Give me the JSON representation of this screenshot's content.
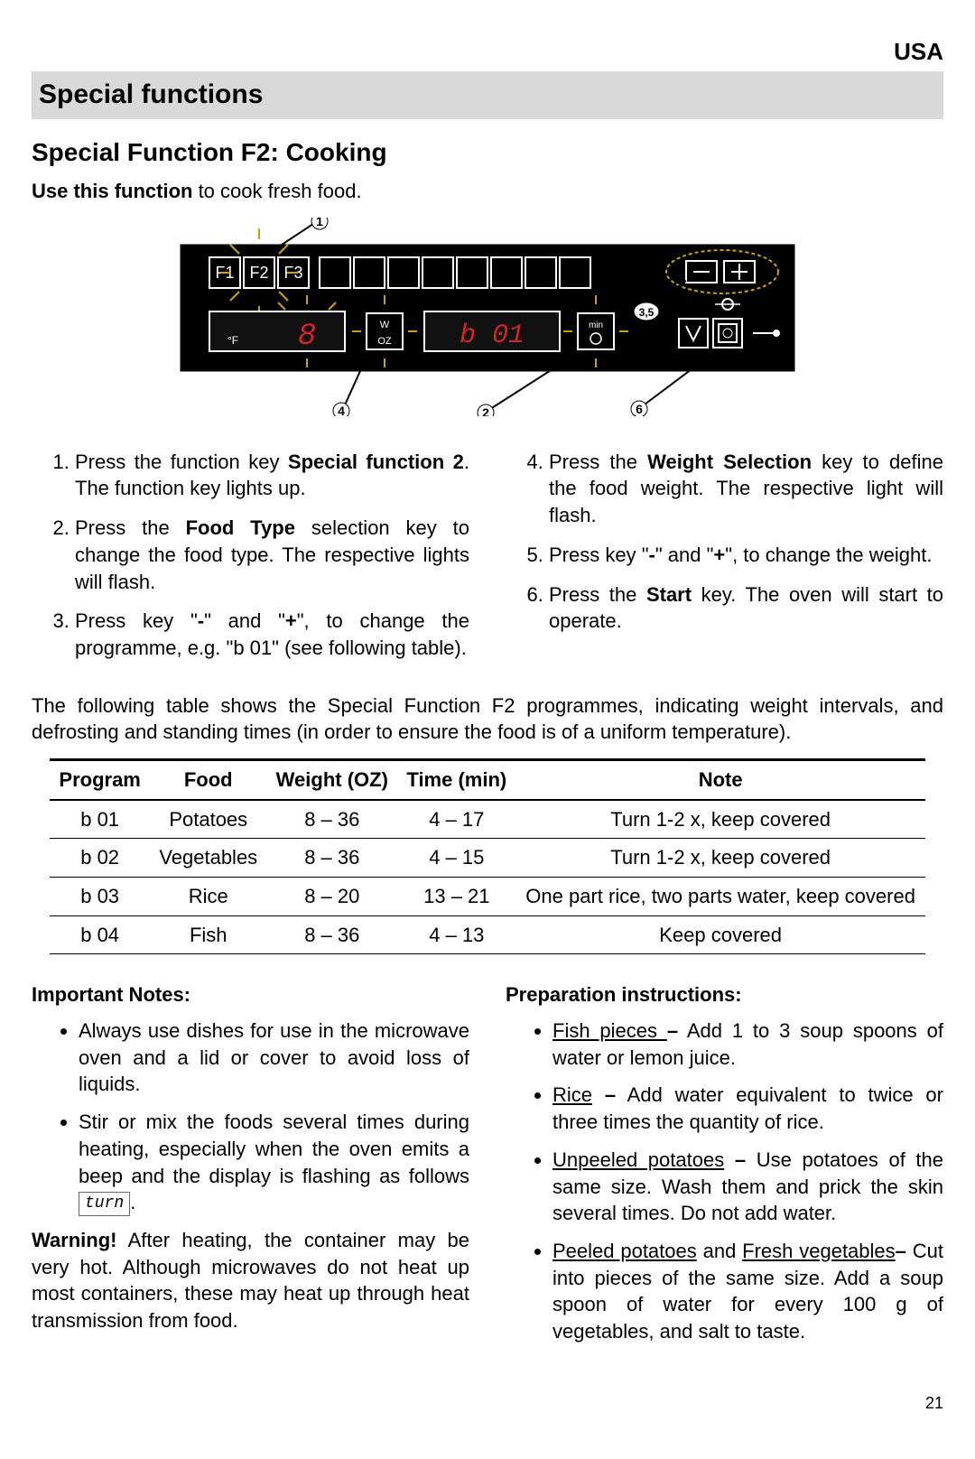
{
  "header": {
    "country": "USA"
  },
  "banner": "Special functions",
  "subhead": "Special Function F2: Cooking",
  "intro_lead": "Use this function",
  "intro_rest": " to cook fresh food.",
  "panel": {
    "bg": "#000000",
    "display_red": "#d4232a",
    "highlight": "#c9a400",
    "keys": [
      "F1",
      "F2",
      "F3"
    ],
    "display_left": "8",
    "display_right": "b 01",
    "callouts": [
      "1",
      "2",
      "3,5",
      "4",
      "6"
    ]
  },
  "steps_left": [
    "Press the function key <b>Special function 2</b>. The function key lights up.",
    "Press the <b>Food Type</b> selection key to change the food type. The respective lights will flash.",
    "Press key \"<b>-</b>\" and \"<b>+</b>\", to change the programme, e.g. \"b 01\" (see following table)."
  ],
  "steps_right": [
    "Press the <b>Weight Selection</b> key to define the food weight. The respective light will flash.",
    "Press key \"<b>-</b>\" and \"<b>+</b>\", to change the weight.",
    "Press the <b>Start</b> key. The oven will start to operate."
  ],
  "table_lead": "The following table shows the Special Function F2 programmes, indicating weight intervals, and defrosting and standing times (in order to ensure the food is of a uniform temperature).",
  "table": {
    "columns": [
      "Program",
      "Food",
      "Weight (OZ)",
      "Time (min)",
      "Note"
    ],
    "rows": [
      [
        "b  01",
        "Potatoes",
        "8 – 36",
        "4 – 17",
        "Turn 1-2 x, keep covered"
      ],
      [
        "b  02",
        "Vegetables",
        "8 – 36",
        "4 – 15",
        "Turn 1-2 x, keep covered"
      ],
      [
        "b  03",
        "Rice",
        "8 – 20",
        "13 – 21",
        "One part rice, two parts water, keep covered"
      ],
      [
        "b  04",
        "Fish",
        "8 – 36",
        "4 – 13",
        "Keep covered"
      ]
    ]
  },
  "notes_heading": "Important Notes:",
  "notes": [
    "Always use dishes for use in the microwave oven and a lid or cover to avoid loss of liquids.",
    "Stir or mix the foods several times during heating, especially when the oven emits a beep and the display is flashing as follows <span class=\"turn-box\">turn</span>."
  ],
  "warning_lead": "Warning!",
  "warning_rest": " After heating, the container may be very hot. Although microwaves do not heat up most containers, these may heat up through heat transmission from food.",
  "prep_heading": "Preparation instructions:",
  "prep": [
    "<u>Fish pieces </u><b>–</b> Add 1 to 3 soup spoons of water or lemon juice.",
    "<u>Rice</u> <b>–</b> Add water equivalent to twice or three times the quantity of rice.",
    "<u>Unpeeled potatoes</u> <b>–</b> Use potatoes of the same size. Wash them and prick the skin several times. Do not add water.",
    "<u>Peeled potatoes</u> and <u>Fresh vegetables</u><b>–</b> Cut into pieces of the same size. Add a soup spoon of water for every 100 g of vegetables, and salt to taste."
  ],
  "page_number": "21"
}
